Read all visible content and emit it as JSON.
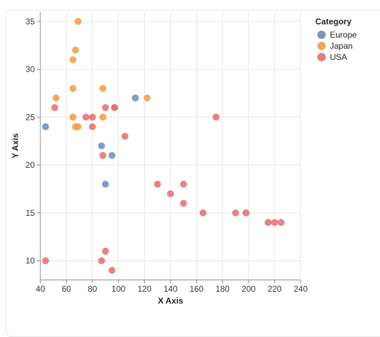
{
  "chart_data": {
    "type": "scatter",
    "title": "",
    "xlabel": "X Axis",
    "ylabel": "Y Axis",
    "xlim": [
      40,
      240
    ],
    "ylim": [
      8,
      36
    ],
    "x_ticks": [
      40,
      60,
      80,
      100,
      120,
      140,
      160,
      180,
      200,
      220,
      240
    ],
    "y_ticks": [
      10,
      15,
      20,
      25,
      30,
      35
    ],
    "grid": true,
    "legend": {
      "title": "Category",
      "placement": "top-right"
    },
    "colors": {
      "Europe": "#6b8db8",
      "Japan": "#f29c40",
      "USA": "#e26d6f"
    },
    "series": [
      {
        "name": "Europe",
        "points": [
          {
            "x": 44,
            "y": 24
          },
          {
            "x": 87,
            "y": 22
          },
          {
            "x": 90,
            "y": 18
          },
          {
            "x": 95,
            "y": 21
          },
          {
            "x": 113,
            "y": 27
          }
        ]
      },
      {
        "name": "Japan",
        "points": [
          {
            "x": 69,
            "y": 35
          },
          {
            "x": 67,
            "y": 32
          },
          {
            "x": 65,
            "y": 31
          },
          {
            "x": 65,
            "y": 28
          },
          {
            "x": 88,
            "y": 28
          },
          {
            "x": 52,
            "y": 27
          },
          {
            "x": 122,
            "y": 27
          },
          {
            "x": 65,
            "y": 25
          },
          {
            "x": 88,
            "y": 25
          },
          {
            "x": 67,
            "y": 24
          },
          {
            "x": 69,
            "y": 24
          }
        ]
      },
      {
        "name": "USA",
        "points": [
          {
            "x": 51,
            "y": 26
          },
          {
            "x": 75,
            "y": 25
          },
          {
            "x": 80,
            "y": 25
          },
          {
            "x": 80,
            "y": 24
          },
          {
            "x": 90,
            "y": 26
          },
          {
            "x": 97,
            "y": 26
          },
          {
            "x": 97,
            "y": 26
          },
          {
            "x": 105,
            "y": 23
          },
          {
            "x": 88,
            "y": 21
          },
          {
            "x": 175,
            "y": 25
          },
          {
            "x": 130,
            "y": 18
          },
          {
            "x": 150,
            "y": 18
          },
          {
            "x": 140,
            "y": 17
          },
          {
            "x": 150,
            "y": 16
          },
          {
            "x": 165,
            "y": 15
          },
          {
            "x": 190,
            "y": 15
          },
          {
            "x": 198,
            "y": 15
          },
          {
            "x": 215,
            "y": 14
          },
          {
            "x": 220,
            "y": 14
          },
          {
            "x": 225,
            "y": 14
          },
          {
            "x": 44,
            "y": 10
          },
          {
            "x": 87,
            "y": 10
          },
          {
            "x": 90,
            "y": 11
          },
          {
            "x": 95,
            "y": 9
          }
        ]
      }
    ]
  }
}
